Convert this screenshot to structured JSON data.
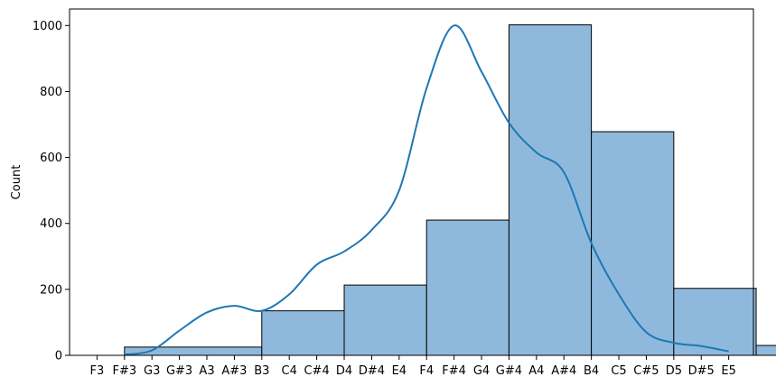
{
  "chart_data": {
    "type": "bar",
    "subtype": "histogram-with-kde",
    "title": "",
    "xlabel": "",
    "ylabel": "Count",
    "ylim": [
      0,
      1050
    ],
    "yticks": [
      0,
      200,
      400,
      600,
      800,
      1000
    ],
    "x_tick_labels": [
      "F3",
      "F#3",
      "G3",
      "G#3",
      "A3",
      "A#3",
      "B3",
      "C4",
      "C#4",
      "D4",
      "D#4",
      "E4",
      "F4",
      "F#4",
      "G4",
      "G#4",
      "A4",
      "A#4",
      "B4",
      "C5",
      "C#5",
      "D5",
      "D#5",
      "E5"
    ],
    "bins": [
      {
        "from": "F#3",
        "to": "B3",
        "value": 25
      },
      {
        "from": "B3",
        "to": "D4",
        "value": 135
      },
      {
        "from": "D4",
        "to": "F4",
        "value": 213
      },
      {
        "from": "F4",
        "to": "G#4",
        "value": 410
      },
      {
        "from": "G#4",
        "to": "B4",
        "value": 1002
      },
      {
        "from": "B4",
        "to": "D5",
        "value": 678
      },
      {
        "from": "D5",
        "to": "F5",
        "value": 203
      },
      {
        "from": "F5",
        "to": "G#5",
        "value": 30
      }
    ],
    "kde": {
      "x_semitone_offsets": [
        1,
        2,
        3,
        4,
        5,
        6,
        7,
        8,
        9,
        10,
        11,
        12,
        13,
        14,
        15,
        16,
        17,
        18,
        19,
        20,
        21,
        22,
        23
      ],
      "y": [
        2,
        15,
        75,
        130,
        150,
        135,
        185,
        275,
        315,
        380,
        500,
        810,
        1000,
        860,
        705,
        615,
        555,
        340,
        185,
        70,
        38,
        28,
        12
      ]
    },
    "grid": false,
    "legend": "none",
    "colors": {
      "bar_fill": "#8fb9dc",
      "bar_edge": "#000000",
      "kde_line": "#1f77b4"
    }
  }
}
